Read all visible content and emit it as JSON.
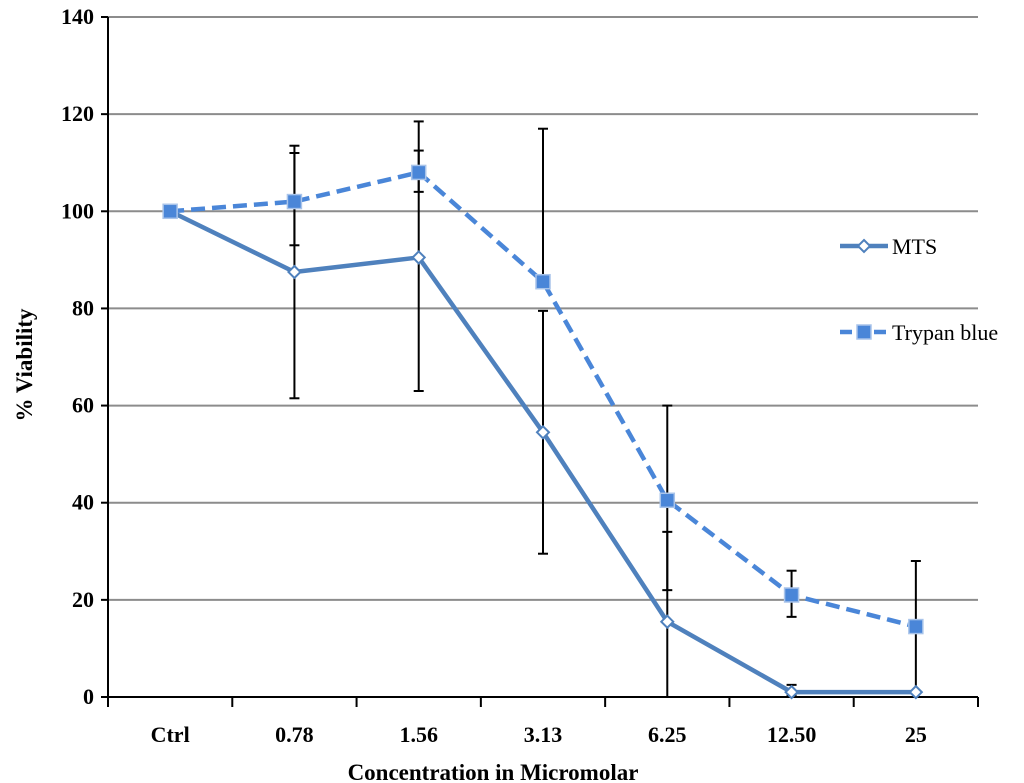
{
  "chart_data": {
    "type": "line",
    "title": "",
    "xlabel": "Concentration in Micromolar",
    "ylabel": "% Viability",
    "ylim": [
      0,
      140
    ],
    "yticks": [
      0,
      20,
      40,
      60,
      80,
      100,
      120,
      140
    ],
    "grid": true,
    "legend_position": "right",
    "categories": [
      "Ctrl",
      "0.78",
      "1.56",
      "3.13",
      "6.25",
      "12.50",
      "25"
    ],
    "series": [
      {
        "name": "MTS",
        "values": [
          100,
          87.5,
          90.5,
          54.5,
          15.5,
          1,
          1
        ],
        "error_low": [
          null,
          61.5,
          63,
          29.5,
          0,
          0.3,
          null
        ],
        "error_high": [
          null,
          113.5,
          118.5,
          79.5,
          34,
          2.5,
          null
        ],
        "color": "#4f81bd",
        "line_style": "solid",
        "marker": "diamond"
      },
      {
        "name": "Trypan blue",
        "values": [
          100,
          102,
          108,
          85.5,
          40.5,
          21,
          14.5
        ],
        "error_low": [
          null,
          93,
          104,
          null,
          22,
          16.5,
          1
        ],
        "error_high": [
          null,
          112,
          112.5,
          117,
          60,
          26,
          28
        ],
        "color": "#4a86d8",
        "line_style": "dashed",
        "marker": "square"
      }
    ]
  }
}
